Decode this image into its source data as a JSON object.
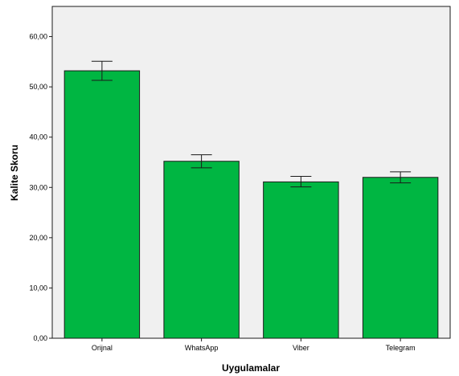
{
  "chart_data": {
    "type": "bar",
    "title": "",
    "xlabel": "Uygulamalar",
    "ylabel": "Kalite Skoru",
    "categories": [
      "Orijnal",
      "WhatsApp",
      "Viber",
      "Telegram"
    ],
    "values": [
      53.2,
      35.2,
      31.1,
      32.0
    ],
    "error_low": [
      51.3,
      33.9,
      30.1,
      30.9
    ],
    "error_high": [
      55.1,
      36.5,
      32.2,
      33.1
    ],
    "ylim": [
      0,
      66
    ],
    "yticks": [
      0,
      10,
      20,
      30,
      40,
      50,
      60
    ],
    "ytick_labels": [
      "0,00",
      "10,00",
      "20,00",
      "30,00",
      "40,00",
      "50,00",
      "60,00"
    ],
    "grid": false,
    "colors": {
      "bar_fill": "#00b642",
      "bar_stroke": "#1a1a1a",
      "plot_background": "#f0f0f0",
      "error_bar": "#1a1a1a"
    }
  }
}
